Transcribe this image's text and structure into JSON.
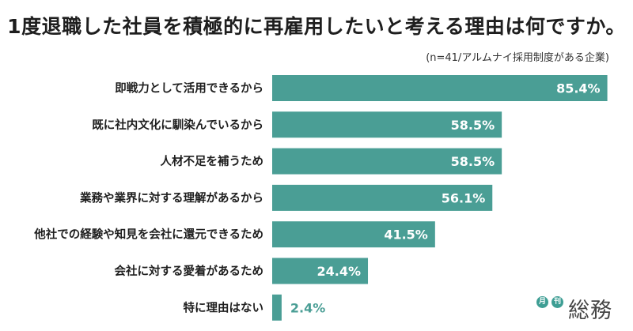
{
  "title": "1度退職した社員を積極的に再雇用したいと考える理由は何ですか。",
  "note": "(n=41/アルムナイ採用制度がある企業)",
  "colors": {
    "bar": "#4a9e95",
    "label_inside": "#ffffff",
    "label_outside": "#4a9e95",
    "category_text": "#1e1e1e"
  },
  "chart_data": {
    "type": "bar",
    "orientation": "horizontal",
    "categories": [
      "即戦力として活用できるから",
      "既に社内文化に馴染んでいるから",
      "人材不足を補うため",
      "業務や業界に対する理解があるから",
      "他社での経験や知見を会社に還元できるため",
      "会社に対する愛着があるため",
      "特に理由はない"
    ],
    "values": [
      85.4,
      58.5,
      58.5,
      56.1,
      41.5,
      24.4,
      2.4
    ],
    "value_labels": [
      "85.4%",
      "58.5%",
      "58.5%",
      "56.1%",
      "41.5%",
      "24.4%",
      "2.4%"
    ],
    "xlim": [
      0,
      100
    ],
    "grid": false,
    "legend": "none"
  },
  "logo": {
    "badge_1": "月",
    "badge_2": "刊",
    "name": "総務"
  }
}
